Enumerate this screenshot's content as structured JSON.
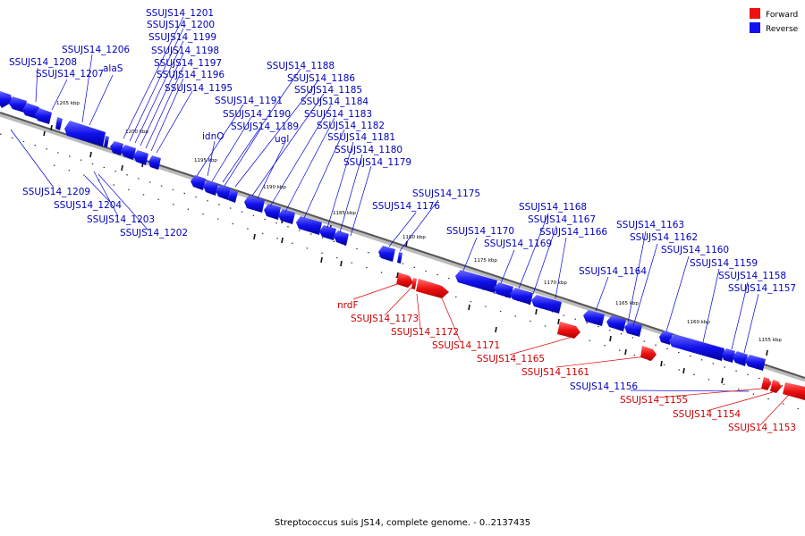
{
  "caption": "Streptococcus suis JS14, complete genome. - 0..2137435",
  "legend": [
    {
      "label": "Forward",
      "color": "#ee1111"
    },
    {
      "label": "Reverse",
      "color": "#1111ee"
    }
  ],
  "colors": {
    "forward": "#ee1111",
    "reverse": "#1111ee",
    "forward_label": "#cc0000",
    "reverse_label": "#0000bb"
  },
  "ticks": [
    "1205 kbp",
    "1200 kbp",
    "1195 kbp",
    "1190 kbp",
    "1185 kbp",
    "1180 kbp",
    "1175 kbp",
    "1170 kbp",
    "1165 kbp",
    "1160 kbp",
    "1155 kbp"
  ],
  "reverse_labels": [
    "SSUJS14_1201",
    "SSUJS14_1200",
    "SSUJS14_1199",
    "SSUJS14_1198",
    "SSUJS14_1197",
    "SSUJS14_1196",
    "SSUJS14_1195",
    "SSUJS14_1206",
    "SSUJS14_1208",
    "SSUJS14_1207",
    "alaS",
    "SSUJS14_1188",
    "SSUJS14_1186",
    "SSUJS14_1185",
    "SSUJS14_1184",
    "SSUJS14_1183",
    "SSUJS14_1182",
    "SSUJS14_1181",
    "SSUJS14_1180",
    "SSUJS14_1179",
    "SSUJS14_1191",
    "SSUJS14_1190",
    "SSUJS14_1189",
    "idnO",
    "ugl",
    "SSUJS14_1209",
    "SSUJS14_1204",
    "SSUJS14_1203",
    "SSUJS14_1202",
    "SSUJS14_1175",
    "SSUJS14_1176",
    "SSUJS14_1168",
    "SSUJS14_1167",
    "SSUJS14_1166",
    "SSUJS14_1170",
    "SSUJS14_1169",
    "SSUJS14_1163",
    "SSUJS14_1162",
    "SSUJS14_1160",
    "SSUJS14_1159",
    "SSUJS14_1158",
    "SSUJS14_1157",
    "SSUJS14_1164",
    "SSUJS14_1156"
  ],
  "forward_labels": [
    "nrdF",
    "SSUJS14_1173",
    "SSUJS14_1172",
    "SSUJS14_1171",
    "SSUJS14_1165",
    "SSUJS14_1161",
    "SSUJS14_1155",
    "SSUJS14_1154",
    "SSUJS14_1153"
  ]
}
